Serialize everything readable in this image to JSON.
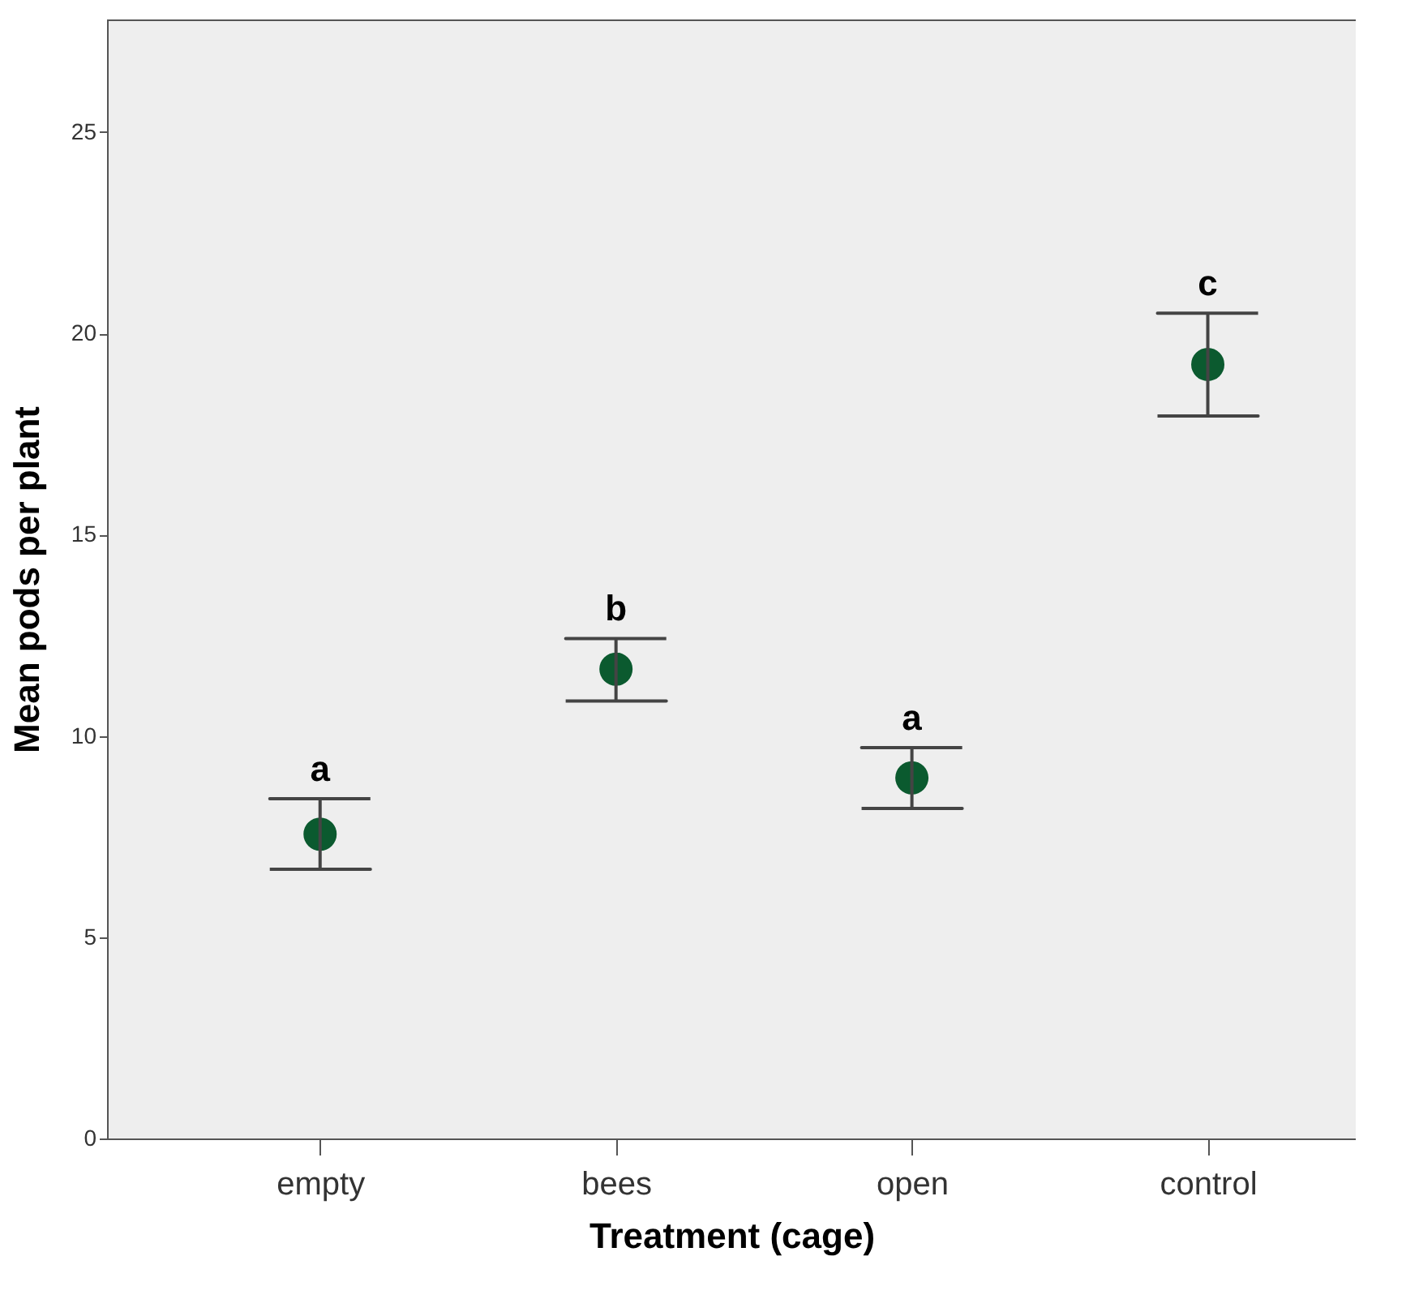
{
  "chart_data": {
    "type": "scatter",
    "xlabel": "Treatment (cage)",
    "ylabel": "Mean pods per plant",
    "categories": [
      "empty",
      "bees",
      "open",
      "control"
    ],
    "series": [
      {
        "color": "#0b5a2f",
        "values": [
          7.56,
          11.66,
          8.96,
          19.23
        ],
        "errors": [
          [
            6.69,
            8.44
          ],
          [
            10.87,
            12.42
          ],
          [
            8.2,
            9.71
          ],
          [
            17.95,
            20.5
          ]
        ]
      }
    ],
    "ylim": [
      0,
      27.8
    ],
    "yticks": [
      0,
      5,
      10,
      15,
      20,
      25
    ],
    "grid": false,
    "marker": "circle",
    "annotations": [
      "a",
      "b",
      "a",
      "c"
    ]
  }
}
